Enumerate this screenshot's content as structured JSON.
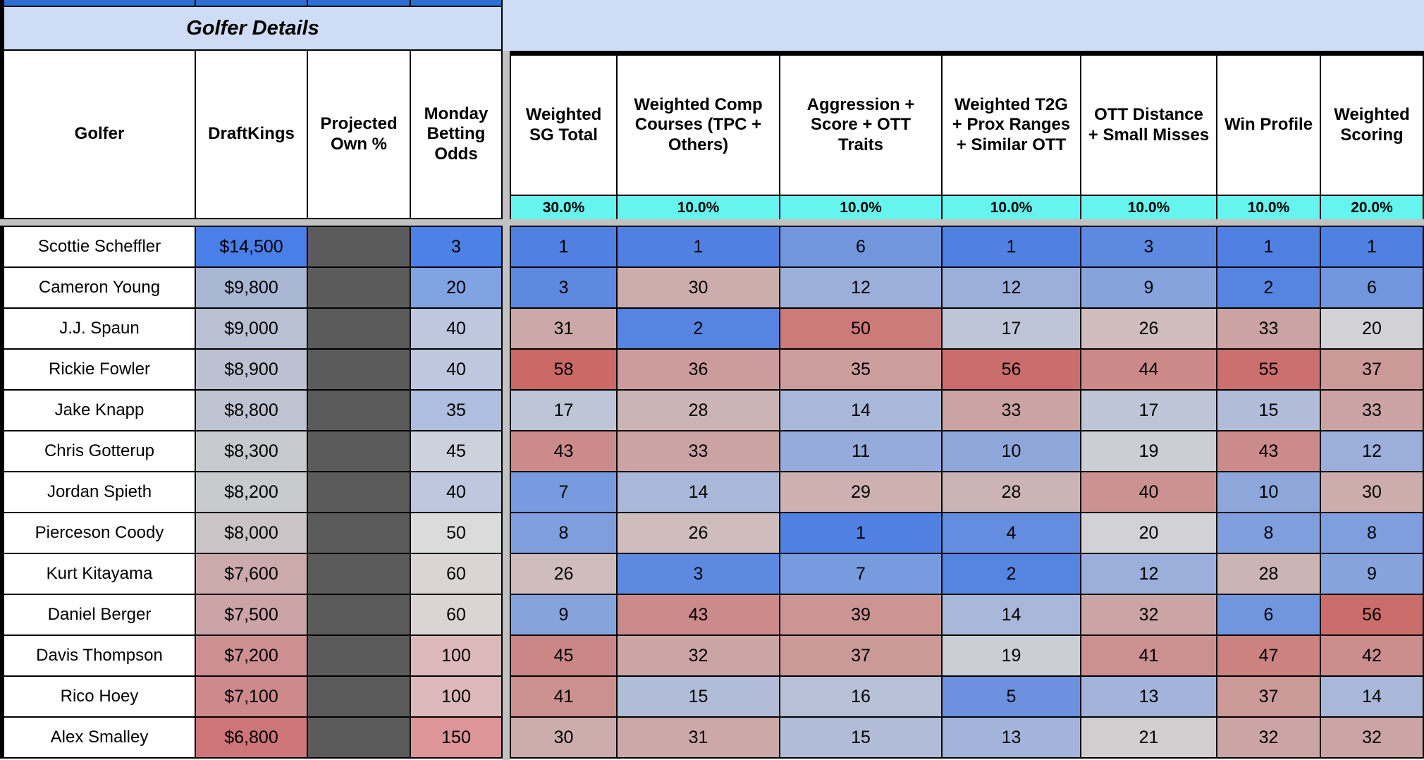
{
  "banner": {
    "title": "Golfer Details"
  },
  "left_table": {
    "columns": [
      "Golfer",
      "DraftKings",
      "Projected Own %",
      "Monday Betting Odds"
    ]
  },
  "metrics": {
    "columns": [
      {
        "label": "Weighted SG Total",
        "weight": "30.0%"
      },
      {
        "label": "Weighted Comp Courses (TPC + Others)",
        "weight": "10.0%"
      },
      {
        "label": "Aggression + Score + OTT Traits",
        "weight": "10.0%"
      },
      {
        "label": "Weighted T2G + Prox Ranges + Similar OTT",
        "weight": "10.0%"
      },
      {
        "label": "OTT Distance + Small Misses",
        "weight": "10.0%"
      },
      {
        "label": "Win Profile",
        "weight": "10.0%"
      },
      {
        "label": "Weighted Scoring",
        "weight": "20.0%"
      }
    ]
  },
  "rows": [
    {
      "golfer": "Scottie Scheffler",
      "salary": "$14,500",
      "odds": 3,
      "ranks": [
        1,
        1,
        6,
        1,
        3,
        1,
        1
      ]
    },
    {
      "golfer": "Cameron Young",
      "salary": "$9,800",
      "odds": 20,
      "ranks": [
        3,
        30,
        12,
        12,
        9,
        2,
        6
      ]
    },
    {
      "golfer": "J.J. Spaun",
      "salary": "$9,000",
      "odds": 40,
      "ranks": [
        31,
        2,
        50,
        17,
        26,
        33,
        20
      ]
    },
    {
      "golfer": "Rickie Fowler",
      "salary": "$8,900",
      "odds": 40,
      "ranks": [
        58,
        36,
        35,
        56,
        44,
        55,
        37
      ]
    },
    {
      "golfer": "Jake Knapp",
      "salary": "$8,800",
      "odds": 35,
      "ranks": [
        17,
        28,
        14,
        33,
        17,
        15,
        33
      ]
    },
    {
      "golfer": "Chris Gotterup",
      "salary": "$8,300",
      "odds": 45,
      "ranks": [
        43,
        33,
        11,
        10,
        19,
        43,
        12
      ]
    },
    {
      "golfer": "Jordan Spieth",
      "salary": "$8,200",
      "odds": 40,
      "ranks": [
        7,
        14,
        29,
        28,
        40,
        10,
        30
      ]
    },
    {
      "golfer": "Pierceson Coody",
      "salary": "$8,000",
      "odds": 50,
      "ranks": [
        8,
        26,
        1,
        4,
        20,
        8,
        8
      ]
    },
    {
      "golfer": "Kurt Kitayama",
      "salary": "$7,600",
      "odds": 60,
      "ranks": [
        26,
        3,
        7,
        2,
        12,
        28,
        9
      ]
    },
    {
      "golfer": "Daniel Berger",
      "salary": "$7,500",
      "odds": 60,
      "ranks": [
        9,
        43,
        39,
        14,
        32,
        6,
        56
      ]
    },
    {
      "golfer": "Davis Thompson",
      "salary": "$7,200",
      "odds": 100,
      "ranks": [
        45,
        32,
        37,
        19,
        41,
        47,
        42
      ]
    },
    {
      "golfer": "Rico Hoey",
      "salary": "$7,100",
      "odds": 100,
      "ranks": [
        41,
        15,
        16,
        5,
        13,
        37,
        14
      ]
    },
    {
      "golfer": "Alex Smalley",
      "salary": "$6,800",
      "odds": 150,
      "ranks": [
        30,
        31,
        15,
        13,
        21,
        32,
        32
      ]
    }
  ],
  "colors": {
    "top_bar_blue": "#2E6FD1",
    "banner_blue": "#CFDCF5",
    "weights_cyan": "#66F5EE",
    "pane_gray": "#C2C2C2",
    "own_gray": "#5B5B5B",
    "border_black": "#000000",
    "rank_scale": [
      [
        1,
        "#4F80E2"
      ],
      [
        20,
        "#D2D2D4"
      ],
      [
        32,
        "#CBA5A4"
      ],
      [
        60,
        "#CB6462"
      ]
    ],
    "odds_scale": [
      [
        3,
        "#4E81E8"
      ],
      [
        50,
        "#DBDBDB"
      ],
      [
        150,
        "#DD9598"
      ]
    ],
    "salary_scale": [
      [
        6400,
        "#CE5A5E"
      ],
      [
        8100,
        "#CBCBCD"
      ],
      [
        14500,
        "#4A7EE8"
      ]
    ]
  }
}
